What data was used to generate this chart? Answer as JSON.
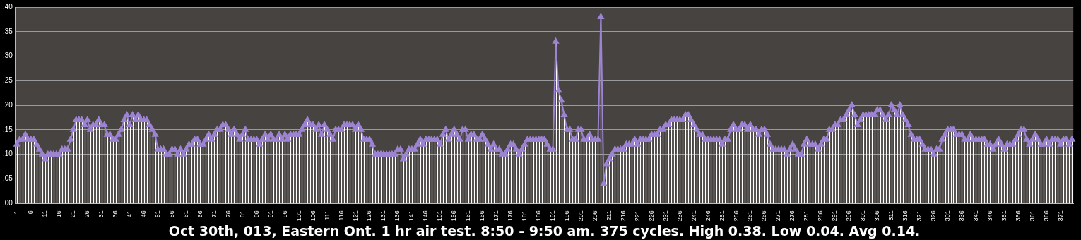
{
  "chart_data": {
    "type": "line",
    "xlabel": "Oct 30th, 013, Eastern Ont. 1 hr air test. 8:50 - 9:50 am. 375 cycles. High 0.38. Low 0.04. Avg 0.14.",
    "categories": [
      "1",
      null,
      null,
      null,
      null,
      "6",
      null,
      null,
      null,
      null,
      "11",
      null,
      null,
      null,
      null,
      "16",
      null,
      null,
      null,
      null,
      "21",
      null,
      null,
      null,
      null,
      "26",
      null,
      null,
      null,
      null,
      "31",
      null,
      null,
      null,
      null,
      "36",
      null,
      null,
      null,
      null,
      "41",
      null,
      null,
      null,
      null,
      "46",
      null,
      null,
      null,
      null,
      "51",
      null,
      null,
      null,
      null,
      "56",
      null,
      null,
      null,
      null,
      "61",
      null,
      null,
      null,
      null,
      "66",
      null,
      null,
      null,
      null,
      "71",
      null,
      null,
      null,
      null,
      "76",
      null,
      null,
      null,
      null,
      "81",
      null,
      null,
      null,
      null,
      "86",
      null,
      null,
      null,
      null,
      "91",
      null,
      null,
      null,
      null,
      "96",
      null,
      null,
      null,
      null,
      "101",
      null,
      null,
      null,
      null,
      "106",
      null,
      null,
      null,
      null,
      "111",
      null,
      null,
      null,
      null,
      "116",
      null,
      null,
      null,
      null,
      "121",
      null,
      null,
      null,
      null,
      "126",
      null,
      null,
      null,
      null,
      "131",
      null,
      null,
      null,
      null,
      "136",
      null,
      null,
      null,
      null,
      "141",
      null,
      null,
      null,
      null,
      "146",
      null,
      null,
      null,
      null,
      "151",
      null,
      null,
      null,
      null,
      "156",
      null,
      null,
      null,
      null,
      "161",
      null,
      null,
      null,
      null,
      "166",
      null,
      null,
      null,
      null,
      "171",
      null,
      null,
      null,
      null,
      "176",
      null,
      null,
      null,
      null,
      "181",
      null,
      null,
      null,
      null,
      "186",
      null,
      null,
      null,
      null,
      "191",
      null,
      null,
      null,
      null,
      "196",
      null,
      null,
      null,
      null,
      "201",
      null,
      null,
      null,
      null,
      "206",
      null,
      null,
      null,
      null,
      "211",
      null,
      null,
      null,
      null,
      "216",
      null,
      null,
      null,
      null,
      "221",
      null,
      null,
      null,
      null,
      "226",
      null,
      null,
      null,
      null,
      "231",
      null,
      null,
      null,
      null,
      "236",
      null,
      null,
      null,
      null,
      "241",
      null,
      null,
      null,
      null,
      "246",
      null,
      null,
      null,
      null,
      "251",
      null,
      null,
      null,
      null,
      "256",
      null,
      null,
      null,
      null,
      "261",
      null,
      null,
      null,
      null,
      "266",
      null,
      null,
      null,
      null,
      "271",
      null,
      null,
      null,
      null,
      "276",
      null,
      null,
      null,
      null,
      "281",
      null,
      null,
      null,
      null,
      "286",
      null,
      null,
      null,
      null,
      "291",
      null,
      null,
      null,
      null,
      "296",
      null,
      null,
      null,
      null,
      "301",
      null,
      null,
      null,
      null,
      "306",
      null,
      null,
      null,
      null,
      "311",
      null,
      null,
      null,
      null,
      "316",
      null,
      null,
      null,
      null,
      "321",
      null,
      null,
      null,
      null,
      "326",
      null,
      null,
      null,
      null,
      "331",
      null,
      null,
      null,
      null,
      "336",
      null,
      null,
      null,
      null,
      "341",
      null,
      null,
      null,
      null,
      "346",
      null,
      null,
      null,
      null,
      "351",
      null,
      null,
      null,
      null,
      "356",
      null,
      null,
      null,
      null,
      "361",
      null,
      null,
      null,
      null,
      "366",
      null,
      null,
      null,
      null,
      "371",
      null,
      null,
      null,
      null
    ],
    "series": [
      {
        "color": "#9d84d2",
        "values": [
          0.12,
          0.13,
          0.13,
          0.14,
          0.13,
          0.13,
          0.13,
          0.12,
          0.11,
          0.1,
          0.09,
          0.1,
          0.1,
          0.1,
          0.1,
          0.1,
          0.11,
          0.11,
          0.11,
          0.13,
          0.15,
          0.17,
          0.17,
          0.17,
          0.16,
          0.17,
          0.15,
          0.16,
          0.16,
          0.17,
          0.16,
          0.16,
          0.14,
          0.14,
          0.13,
          0.13,
          0.14,
          0.15,
          0.17,
          0.18,
          0.16,
          0.18,
          0.17,
          0.18,
          0.17,
          0.17,
          0.17,
          0.16,
          0.15,
          0.14,
          0.11,
          0.11,
          0.11,
          0.1,
          0.1,
          0.11,
          0.11,
          0.1,
          0.11,
          0.1,
          0.11,
          0.12,
          0.12,
          0.13,
          0.13,
          0.12,
          0.12,
          0.13,
          0.14,
          0.13,
          0.14,
          0.15,
          0.15,
          0.16,
          0.16,
          0.15,
          0.14,
          0.15,
          0.14,
          0.13,
          0.14,
          0.15,
          0.13,
          0.13,
          0.13,
          0.13,
          0.12,
          0.13,
          0.14,
          0.13,
          0.14,
          0.13,
          0.13,
          0.14,
          0.13,
          0.14,
          0.13,
          0.14,
          0.14,
          0.14,
          0.14,
          0.15,
          0.16,
          0.17,
          0.16,
          0.16,
          0.15,
          0.16,
          0.14,
          0.16,
          0.15,
          0.14,
          0.13,
          0.15,
          0.15,
          0.15,
          0.16,
          0.16,
          0.16,
          0.16,
          0.15,
          0.16,
          0.15,
          0.13,
          0.13,
          0.13,
          0.12,
          0.1,
          0.1,
          0.1,
          0.1,
          0.1,
          0.1,
          0.1,
          0.1,
          0.11,
          0.11,
          0.09,
          0.1,
          0.11,
          0.11,
          0.11,
          0.12,
          0.13,
          0.12,
          0.13,
          0.13,
          0.13,
          0.13,
          0.13,
          0.12,
          0.14,
          0.15,
          0.13,
          0.14,
          0.15,
          0.14,
          0.13,
          0.15,
          0.15,
          0.13,
          0.14,
          0.14,
          0.13,
          0.13,
          0.14,
          0.13,
          0.12,
          0.11,
          0.12,
          0.11,
          0.11,
          0.1,
          0.1,
          0.11,
          0.12,
          0.12,
          0.11,
          0.1,
          0.11,
          0.12,
          0.13,
          0.13,
          0.13,
          0.13,
          0.13,
          0.13,
          0.13,
          0.12,
          0.11,
          0.11,
          0.33,
          0.23,
          0.21,
          0.18,
          0.15,
          0.15,
          0.13,
          0.13,
          0.15,
          0.15,
          0.13,
          0.13,
          0.14,
          0.13,
          0.13,
          0.13,
          0.38,
          0.04,
          0.08,
          0.09,
          0.1,
          0.11,
          0.11,
          0.11,
          0.11,
          0.12,
          0.12,
          0.12,
          0.13,
          0.12,
          0.13,
          0.13,
          0.13,
          0.13,
          0.14,
          0.14,
          0.14,
          0.15,
          0.15,
          0.16,
          0.16,
          0.17,
          0.17,
          0.17,
          0.17,
          0.17,
          0.18,
          0.18,
          0.17,
          0.16,
          0.15,
          0.14,
          0.14,
          0.13,
          0.13,
          0.13,
          0.13,
          0.13,
          0.13,
          0.12,
          0.13,
          0.13,
          0.15,
          0.16,
          0.15,
          0.15,
          0.16,
          0.16,
          0.15,
          0.16,
          0.15,
          0.15,
          0.14,
          0.15,
          0.15,
          0.14,
          0.12,
          0.11,
          0.11,
          0.11,
          0.11,
          0.11,
          0.1,
          0.11,
          0.12,
          0.11,
          0.1,
          0.1,
          0.12,
          0.13,
          0.12,
          0.12,
          0.12,
          0.11,
          0.12,
          0.13,
          0.13,
          0.15,
          0.15,
          0.16,
          0.16,
          0.17,
          0.17,
          0.18,
          0.19,
          0.2,
          0.18,
          0.16,
          0.17,
          0.18,
          0.18,
          0.18,
          0.18,
          0.18,
          0.19,
          0.19,
          0.18,
          0.17,
          0.18,
          0.2,
          0.19,
          0.18,
          0.2,
          0.18,
          0.17,
          0.16,
          0.14,
          0.13,
          0.13,
          0.13,
          0.12,
          0.11,
          0.11,
          0.11,
          0.1,
          0.11,
          0.11,
          0.13,
          0.14,
          0.15,
          0.15,
          0.15,
          0.14,
          0.14,
          0.14,
          0.13,
          0.13,
          0.14,
          0.13,
          0.13,
          0.13,
          0.13,
          0.13,
          0.12,
          0.12,
          0.11,
          0.12,
          0.13,
          0.12,
          0.11,
          0.12,
          0.12,
          0.12,
          0.13,
          0.14,
          0.15,
          0.15,
          0.13,
          0.12,
          0.13,
          0.14,
          0.13,
          0.12,
          0.12,
          0.13,
          0.12,
          0.13,
          0.13,
          0.13,
          0.12,
          0.13,
          0.13,
          0.12,
          0.13
        ]
      }
    ],
    "ylim": [
      0,
      0.4
    ],
    "yticks": [
      {
        "value": 0,
        "label": ".00"
      },
      {
        "value": 0.05,
        "label": ".05"
      },
      {
        "value": 0.1,
        "label": ".10"
      },
      {
        "value": 0.15,
        "label": ".15"
      },
      {
        "value": 0.2,
        "label": ".20"
      },
      {
        "value": 0.25,
        "label": ".25"
      },
      {
        "value": 0.3,
        "label": ".30"
      },
      {
        "value": 0.35,
        "label": ".35"
      },
      {
        "value": 0.4,
        "label": ".40"
      }
    ],
    "grid": "y",
    "legend": false,
    "marker": "triangle",
    "line_style": "solid"
  }
}
